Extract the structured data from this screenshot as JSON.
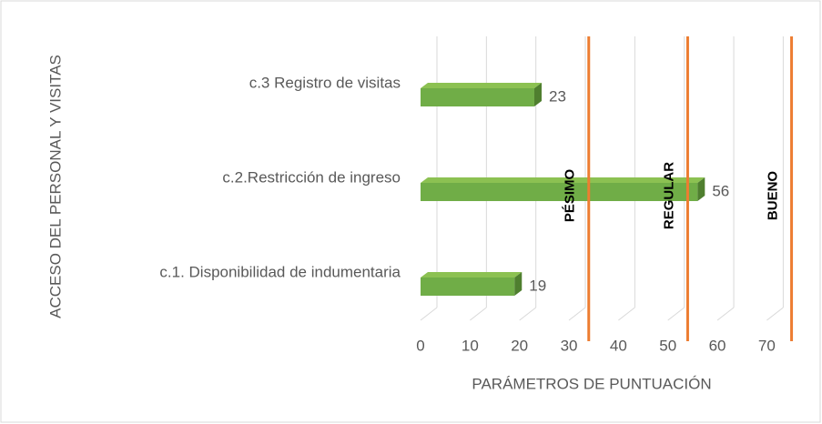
{
  "chart_data": {
    "type": "bar3d_horizontal",
    "xlabel": "PARÁMETROS DE PUNTUACIÓN",
    "ylabel": "ACCESO DEL PERSONAL Y VISITAS",
    "categories": [
      "c.3 Registro de visitas",
      "c.2.Restricción de ingreso",
      "c.1. Disponibilidad de indumentaria"
    ],
    "values": [
      23,
      56,
      19
    ],
    "color": "#70ad47",
    "xlim": [
      0,
      76
    ],
    "xticks": [
      0,
      10,
      20,
      30,
      40,
      50,
      60,
      70
    ],
    "grid": true,
    "thresholds": [
      {
        "value": 34,
        "label": "PÉSIMO"
      },
      {
        "value": 54,
        "label": "REGULAR"
      },
      {
        "value": 75,
        "label": "BUENO"
      }
    ],
    "threshold_color": "#ed7d31"
  }
}
